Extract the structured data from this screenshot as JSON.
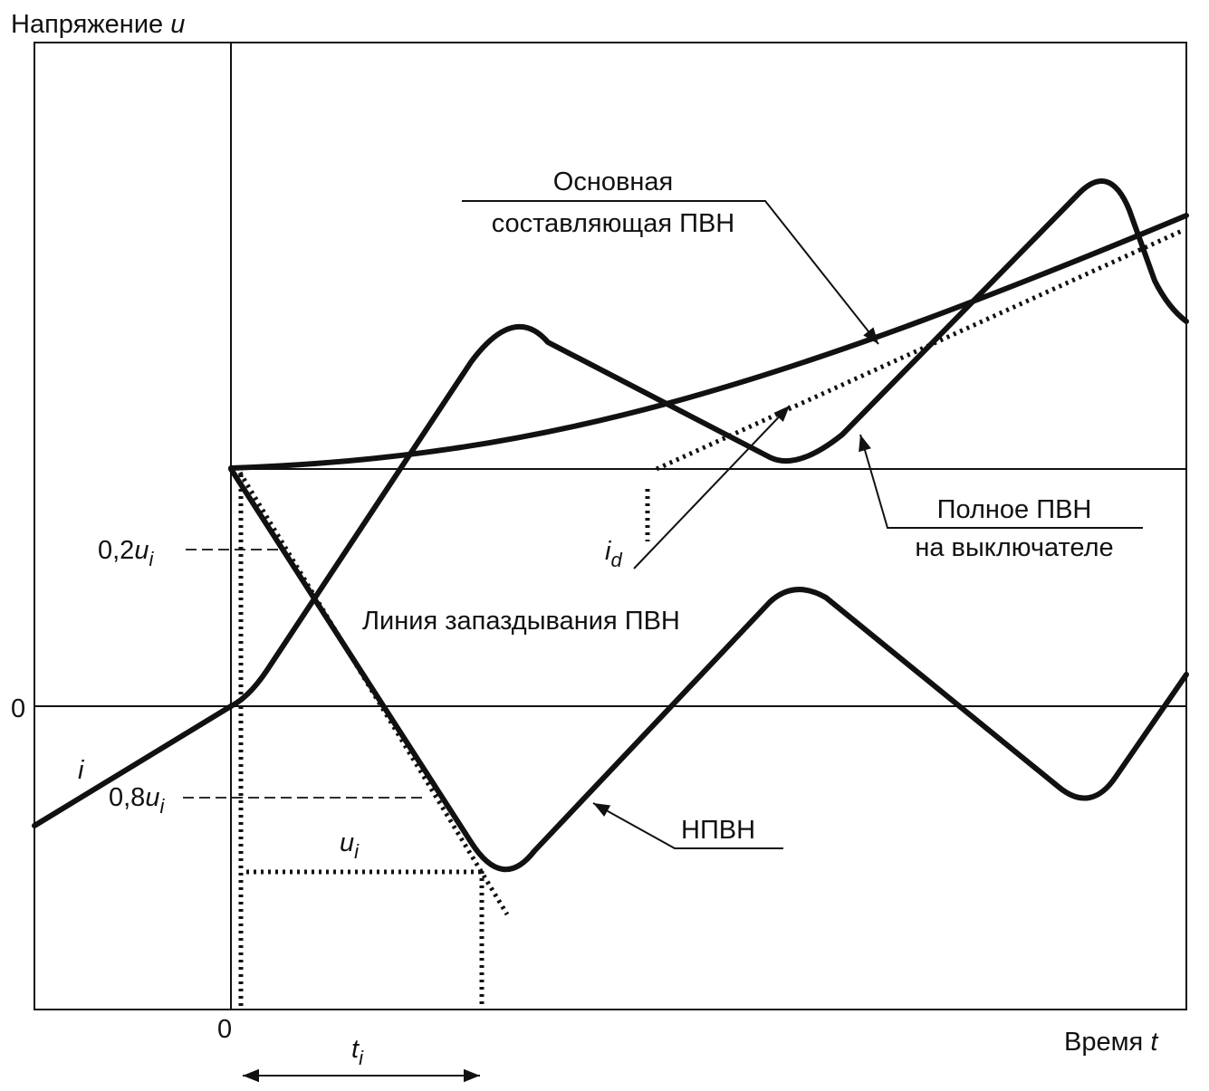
{
  "y_axis": {
    "label": "Напряжение",
    "symbol": "u",
    "zero": "0"
  },
  "x_axis": {
    "label": "Время",
    "symbol": "t",
    "zero": "0"
  },
  "levels": [
    {
      "prefix": "0,2",
      "symbol": "u",
      "subscript": "i"
    },
    {
      "prefix": "0,8",
      "symbol": "u",
      "subscript": "i"
    }
  ],
  "symbols": {
    "current": "i",
    "id": {
      "symbol": "i",
      "subscript": "d"
    },
    "ui": {
      "symbol": "u",
      "subscript": "i"
    },
    "ti": {
      "symbol": "t",
      "subscript": "i"
    }
  },
  "annotations": {
    "main_component": [
      "Основная",
      "составляющая ПВН"
    ],
    "full_trv": [
      "Полное ПВН",
      "на выключателе"
    ],
    "delay_line": "Линия запаздывания ПВН",
    "itrv": "НПВН"
  }
}
